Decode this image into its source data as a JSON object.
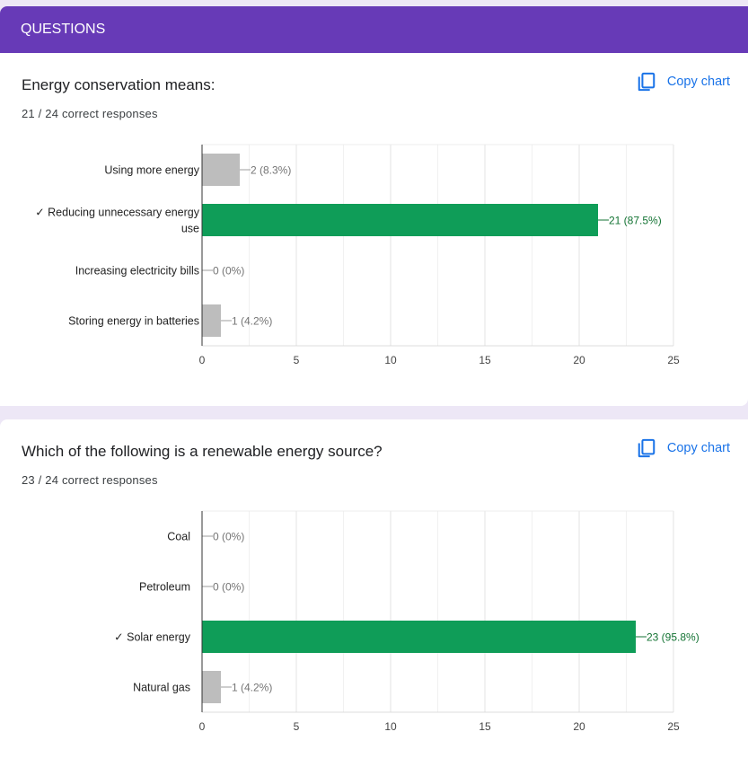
{
  "header": {
    "title": "QUESTIONS"
  },
  "questions": [
    {
      "title": "Energy conservation means:",
      "score": "21 / 24 correct responses",
      "copy_label": "Copy chart",
      "chart_data": {
        "type": "bar",
        "orientation": "horizontal",
        "categories": [
          [
            "Using more energy"
          ],
          [
            "✓ Reducing unnecessary energy",
            "use"
          ],
          [
            "Increasing electricity bills"
          ],
          [
            "Storing energy in batteries"
          ]
        ],
        "values": [
          2,
          21,
          0,
          1
        ],
        "value_labels": [
          "2 (8.3%)",
          "21 (87.5%)",
          "0 (0%)",
          "1 (4.2%)"
        ],
        "correct": [
          false,
          true,
          false,
          false
        ],
        "xticks": [
          "0",
          "5",
          "10",
          "15",
          "20",
          "25"
        ],
        "xlim": [
          0,
          25
        ],
        "grid": true,
        "colors": {
          "correct": "#0f9d58",
          "incorrect": "#bdbdbd",
          "correct_label": "#137333",
          "incorrect_label": "#757575"
        }
      }
    },
    {
      "title": "Which of the following is a renewable energy source?",
      "score": "23 / 24 correct responses",
      "copy_label": "Copy chart",
      "chart_data": {
        "type": "bar",
        "orientation": "horizontal",
        "categories": [
          [
            "Coal"
          ],
          [
            "Petroleum"
          ],
          [
            "✓ Solar energy"
          ],
          [
            "Natural gas"
          ]
        ],
        "values": [
          0,
          0,
          23,
          1
        ],
        "value_labels": [
          "0 (0%)",
          "0 (0%)",
          "23 (95.8%)",
          "1 (4.2%)"
        ],
        "correct": [
          false,
          false,
          true,
          false
        ],
        "xticks": [
          "0",
          "5",
          "10",
          "15",
          "20",
          "25"
        ],
        "xlim": [
          0,
          25
        ],
        "grid": true,
        "colors": {
          "correct": "#0f9d58",
          "incorrect": "#bdbdbd",
          "correct_label": "#137333",
          "incorrect_label": "#757575"
        }
      }
    }
  ]
}
